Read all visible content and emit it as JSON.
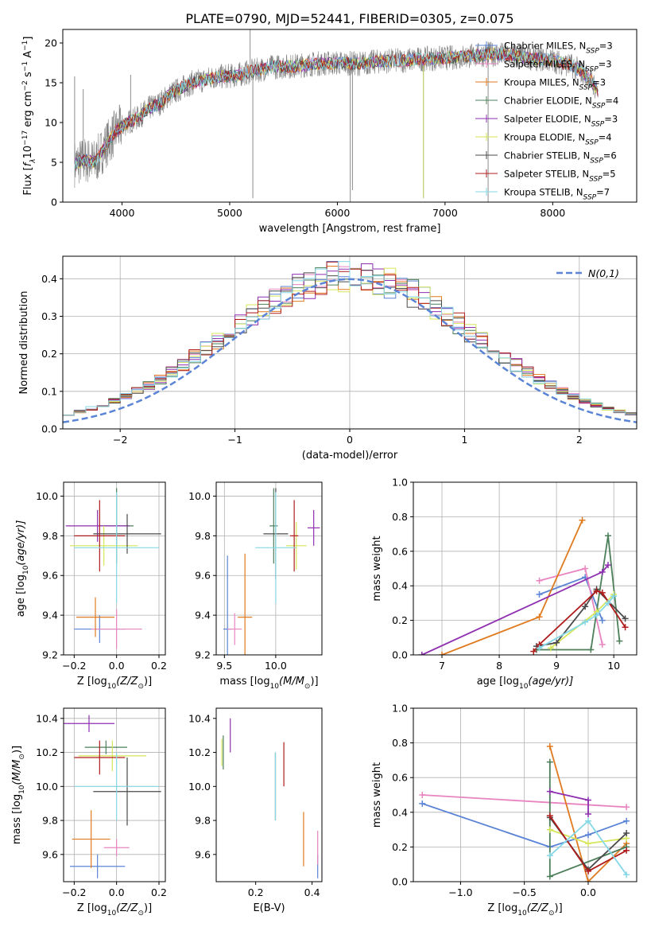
{
  "figure_title": "PLATE=0790, MJD=52441, FIBERID=0305, z=0.075",
  "colors": {
    "Chabrier MILES": "#5b84d6",
    "Salpeter MILES": "#e884c0",
    "Kroupa MILES": "#e07a1f",
    "Chabrier ELODIE": "#4c7f5a",
    "Salpeter ELODIE": "#8e2fb0",
    "Kroupa ELODIE": "#d6e65a",
    "Chabrier STELIB": "#4a4a4a",
    "Salpeter STELIB": "#b01c1c",
    "Kroupa STELIB": "#86d8e6",
    "data": "#808080"
  },
  "chart_data": [
    {
      "id": "spectrum",
      "type": "line",
      "xlabel": "wavelength [Angstrom, rest frame]",
      "ylabel_main": "Flux [",
      "ylabel_parts": [
        "f",
        "λ",
        "10",
        "−17",
        " erg cm",
        "−2",
        " s",
        "−1",
        " A",
        "−1",
        "]"
      ],
      "xlim": [
        3450,
        8780
      ],
      "ylim": [
        0,
        21.7
      ],
      "xticks": [
        4000,
        5000,
        6000,
        7000,
        8000
      ],
      "yticks": [
        0,
        5,
        10,
        15,
        20
      ],
      "grid": false,
      "legend": "right",
      "legend_entries": [
        {
          "name": "Chabrier MILES",
          "nssp": "3"
        },
        {
          "name": "Salpeter MILES",
          "nssp": "3"
        },
        {
          "name": "Kroupa MILES",
          "nssp": "3"
        },
        {
          "name": "Chabrier ELODIE",
          "nssp": "4"
        },
        {
          "name": "Salpeter ELODIE",
          "nssp": "3"
        },
        {
          "name": "Kroupa ELODIE",
          "nssp": "4"
        },
        {
          "name": "Chabrier STELIB",
          "nssp": "6"
        },
        {
          "name": "Salpeter STELIB",
          "nssp": "5"
        },
        {
          "name": "Kroupa STELIB",
          "nssp": "7"
        }
      ],
      "legend_nssp_prefix": "N",
      "legend_nssp_sub": "SSP",
      "continuum": [
        [
          3560,
          4.8
        ],
        [
          3650,
          5.3
        ],
        [
          3750,
          5.0
        ],
        [
          3850,
          7.2
        ],
        [
          3950,
          9.0
        ],
        [
          4050,
          10.0
        ],
        [
          4150,
          10.6
        ],
        [
          4250,
          11.8
        ],
        [
          4350,
          12.4
        ],
        [
          4450,
          13.6
        ],
        [
          4550,
          14.3
        ],
        [
          4650,
          15.0
        ],
        [
          4750,
          15.3
        ],
        [
          4850,
          15.7
        ],
        [
          4950,
          15.8
        ],
        [
          5050,
          15.9
        ],
        [
          5200,
          16.4
        ],
        [
          5400,
          17.0
        ],
        [
          5600,
          17.1
        ],
        [
          5800,
          17.4
        ],
        [
          6000,
          17.5
        ],
        [
          6200,
          17.4
        ],
        [
          6400,
          17.7
        ],
        [
          6600,
          17.8
        ],
        [
          6800,
          18.0
        ],
        [
          7000,
          18.1
        ],
        [
          7200,
          18.3
        ],
        [
          7400,
          18.6
        ],
        [
          7600,
          18.5
        ],
        [
          7800,
          18.1
        ],
        [
          8000,
          17.8
        ],
        [
          8200,
          17.0
        ],
        [
          8350,
          15.5
        ],
        [
          8420,
          13.8
        ]
      ],
      "spikes": [
        [
          3560,
          15.8
        ],
        [
          3640,
          14.2
        ],
        [
          4080,
          16.0
        ],
        [
          5190,
          21.8
        ],
        [
          5215,
          0.5
        ],
        [
          6120,
          0.0
        ],
        [
          6140,
          1.5
        ],
        [
          6800,
          0.5
        ],
        [
          7400,
          0.0
        ],
        [
          7395,
          19.5
        ]
      ]
    },
    {
      "id": "residuals",
      "type": "histogram",
      "xlabel": "(data-model)/error",
      "ylabel": "Normed distribution",
      "xlim": [
        -2.5,
        2.5
      ],
      "ylim": [
        0,
        0.46
      ],
      "xticks": [
        -2,
        -1,
        0,
        1,
        2
      ],
      "yticks": [
        0.0,
        0.1,
        0.2,
        0.3,
        0.4
      ],
      "grid": true,
      "bins": 50,
      "legend": "top-right",
      "legend_label": "N(0,1)"
    },
    {
      "id": "age_vs_Z",
      "type": "scatter",
      "xlabel_main": "Z [log",
      "xlabel_sub": "10",
      "xlabel_rest": "(Z/Z",
      "xlabel_sun": "⊙",
      "ylabel_main": "age  [log",
      "ylabel_sub": "10",
      "ylabel_rest": "(age/yr)]",
      "xlim": [
        -0.25,
        0.23
      ],
      "ylim": [
        9.2,
        10.07
      ],
      "xticks": [
        -0.2,
        0.0,
        0.2
      ],
      "yticks": [
        9.2,
        9.4,
        9.6,
        9.8,
        10.0
      ],
      "grid": true,
      "points": [
        {
          "series": "Chabrier MILES",
          "x": -0.08,
          "y": 9.33,
          "xerr": 0.12,
          "yerr": 0.07
        },
        {
          "series": "Salpeter MILES",
          "x": 0.0,
          "y": 9.33,
          "xerr": 0.12,
          "yerr": 0.1
        },
        {
          "series": "Kroupa MILES",
          "x": -0.1,
          "y": 9.39,
          "xerr": 0.09,
          "yerr": 0.1
        },
        {
          "series": "Chabrier ELODIE",
          "x": 0.0,
          "y": 9.85,
          "xerr": 0.08,
          "yerr": 0.19
        },
        {
          "series": "Salpeter ELODIE",
          "x": -0.09,
          "y": 9.85,
          "xerr": 0.15,
          "yerr": 0.08
        },
        {
          "series": "Kroupa ELODIE",
          "x": -0.06,
          "y": 9.75,
          "xerr": 0.16,
          "yerr": 0.1
        },
        {
          "series": "Chabrier STELIB",
          "x": 0.05,
          "y": 9.81,
          "xerr": 0.16,
          "yerr": 0.1
        },
        {
          "series": "Salpeter STELIB",
          "x": -0.08,
          "y": 9.8,
          "xerr": 0.12,
          "yerr": 0.18
        },
        {
          "series": "Kroupa STELIB",
          "x": 0.0,
          "y": 9.74,
          "xerr": 0.2,
          "yerr": 0.28
        }
      ]
    },
    {
      "id": "age_vs_mass",
      "type": "scatter",
      "xlabel_main": "mass [log",
      "xlabel_sub": "10",
      "xlabel_rest": "(M/M",
      "xlabel_sun": "⊙",
      "xlim": [
        9.42,
        10.45
      ],
      "ylim": [
        9.2,
        10.07
      ],
      "xticks": [
        9.5,
        10.0
      ],
      "yticks": [
        9.2,
        9.4,
        9.6,
        9.8,
        10.0
      ],
      "grid": true,
      "points": [
        {
          "series": "Chabrier MILES",
          "x": 9.53,
          "y": 9.33,
          "xerr": 0.04,
          "yerr": 0.37
        },
        {
          "series": "Salpeter MILES",
          "x": 9.6,
          "y": 9.33,
          "xerr": 0.07,
          "yerr": 0.08
        },
        {
          "series": "Kroupa MILES",
          "x": 9.7,
          "y": 9.39,
          "xerr": 0.07,
          "yerr": 0.32
        },
        {
          "series": "Chabrier ELODIE",
          "x": 9.98,
          "y": 9.85,
          "xerr": 0.04,
          "yerr": 0.19
        },
        {
          "series": "Salpeter ELODIE",
          "x": 10.37,
          "y": 9.84,
          "xerr": 0.06,
          "yerr": 0.09
        },
        {
          "series": "Kroupa ELODIE",
          "x": 10.2,
          "y": 9.75,
          "xerr": 0.1,
          "yerr": 0.12
        },
        {
          "series": "Chabrier STELIB",
          "x": 10.0,
          "y": 9.81,
          "xerr": 0.12,
          "yerr": 0.23
        },
        {
          "series": "Salpeter STELIB",
          "x": 10.18,
          "y": 9.8,
          "xerr": 0.04,
          "yerr": 0.18
        },
        {
          "series": "Kroupa STELIB",
          "x": 10.0,
          "y": 9.74,
          "xerr": 0.2,
          "yerr": 0.28
        }
      ]
    },
    {
      "id": "weight_vs_age",
      "type": "line",
      "xlabel_main": "age  [log",
      "xlabel_sub": "10",
      "xlabel_rest": "(age/yr)]",
      "ylabel": "mass weight",
      "xlim": [
        6.5,
        10.4
      ],
      "ylim": [
        0.0,
        1.0
      ],
      "xticks": [
        7,
        8,
        9,
        10
      ],
      "yticks": [
        0.0,
        0.2,
        0.4,
        0.6,
        0.8,
        1.0
      ],
      "grid": true,
      "series": [
        {
          "name": "Chabrier MILES",
          "points": [
            [
              8.7,
              0.35
            ],
            [
              9.5,
              0.45
            ],
            [
              9.8,
              0.2
            ]
          ]
        },
        {
          "name": "Salpeter MILES",
          "points": [
            [
              8.7,
              0.43
            ],
            [
              9.5,
              0.5
            ],
            [
              9.8,
              0.06
            ]
          ]
        },
        {
          "name": "Kroupa MILES",
          "points": [
            [
              7.0,
              0.0
            ],
            [
              8.7,
              0.22
            ],
            [
              9.45,
              0.78
            ]
          ]
        },
        {
          "name": "Chabrier ELODIE",
          "points": [
            [
              8.65,
              0.03
            ],
            [
              9.6,
              0.03
            ],
            [
              9.9,
              0.69
            ],
            [
              10.1,
              0.08
            ]
          ]
        },
        {
          "name": "Salpeter ELODIE",
          "points": [
            [
              6.65,
              0.0
            ],
            [
              9.8,
              0.48
            ],
            [
              9.9,
              0.52
            ]
          ]
        },
        {
          "name": "Kroupa ELODIE",
          "points": [
            [
              8.9,
              0.04
            ],
            [
              9.7,
              0.25
            ],
            [
              10.0,
              0.35
            ]
          ]
        },
        {
          "name": "Chabrier STELIB",
          "points": [
            [
              8.65,
              0.05
            ],
            [
              9.0,
              0.07
            ],
            [
              9.5,
              0.28
            ],
            [
              9.7,
              0.38
            ],
            [
              10.2,
              0.21
            ]
          ]
        },
        {
          "name": "Salpeter STELIB",
          "points": [
            [
              8.6,
              0.02
            ],
            [
              8.7,
              0.06
            ],
            [
              9.7,
              0.37
            ],
            [
              9.8,
              0.36
            ],
            [
              10.2,
              0.16
            ]
          ]
        },
        {
          "name": "Kroupa STELIB",
          "points": [
            [
              8.7,
              0.04
            ],
            [
              9.5,
              0.19
            ],
            [
              9.7,
              0.23
            ],
            [
              9.9,
              0.3
            ],
            [
              10.0,
              0.34
            ]
          ]
        }
      ]
    },
    {
      "id": "mass_vs_Z",
      "type": "scatter",
      "xlabel_main": "Z [log",
      "xlabel_sub": "10",
      "xlabel_rest": "(Z/Z",
      "xlabel_sun": "⊙",
      "ylabel_main": "mass [log",
      "ylabel_sub": "10",
      "ylabel_rest": "(M/M",
      "ylabel_sun": "⊙",
      "xlim": [
        -0.25,
        0.23
      ],
      "ylim": [
        9.44,
        10.46
      ],
      "xticks": [
        -0.2,
        0.0,
        0.2
      ],
      "yticks": [
        9.6,
        9.8,
        10.0,
        10.2,
        10.4
      ],
      "grid": true,
      "points": [
        {
          "series": "Chabrier MILES",
          "x": -0.09,
          "y": 9.53,
          "xerr": 0.13,
          "yerr": 0.07
        },
        {
          "series": "Salpeter MILES",
          "x": 0.0,
          "y": 9.64,
          "xerr": 0.06,
          "yerr": 0.05
        },
        {
          "series": "Kroupa MILES",
          "x": -0.12,
          "y": 9.69,
          "xerr": 0.09,
          "yerr": 0.17
        },
        {
          "series": "Chabrier ELODIE",
          "x": -0.05,
          "y": 10.23,
          "xerr": 0.1,
          "yerr": 0.04
        },
        {
          "series": "Salpeter ELODIE",
          "x": -0.13,
          "y": 10.37,
          "xerr": 0.12,
          "yerr": 0.05
        },
        {
          "series": "Kroupa ELODIE",
          "x": -0.02,
          "y": 10.18,
          "xerr": 0.16,
          "yerr": 0.09
        },
        {
          "series": "Chabrier STELIB",
          "x": 0.05,
          "y": 9.97,
          "xerr": 0.16,
          "yerr": 0.2
        },
        {
          "series": "Salpeter STELIB",
          "x": -0.08,
          "y": 10.17,
          "xerr": 0.12,
          "yerr": 0.1
        },
        {
          "series": "Kroupa STELIB",
          "x": 0.0,
          "y": 10.0,
          "xerr": 0.2,
          "yerr": 0.2
        }
      ]
    },
    {
      "id": "mass_vs_ebv",
      "type": "scatter",
      "xlabel": "E(B-V)",
      "xlim": [
        0.06,
        0.435
      ],
      "ylim": [
        9.44,
        10.46
      ],
      "xticks": [
        0.2,
        0.4
      ],
      "yticks": [
        9.6,
        9.8,
        10.0,
        10.2,
        10.4
      ],
      "grid": false,
      "points": [
        {
          "series": "Chabrier MILES",
          "x": 0.42,
          "y": 9.53,
          "xerr": 0.0,
          "yerr": 0.07
        },
        {
          "series": "Salpeter MILES",
          "x": 0.42,
          "y": 9.64,
          "xerr": 0.0,
          "yerr": 0.1
        },
        {
          "series": "Kroupa MILES",
          "x": 0.37,
          "y": 9.69,
          "xerr": 0.0,
          "yerr": 0.16
        },
        {
          "series": "Chabrier ELODIE",
          "x": 0.085,
          "y": 10.2,
          "xerr": 0.0,
          "yerr": 0.1
        },
        {
          "series": "Salpeter ELODIE",
          "x": 0.11,
          "y": 10.3,
          "xerr": 0.0,
          "yerr": 0.1
        },
        {
          "series": "Kroupa ELODIE",
          "x": 0.08,
          "y": 10.2,
          "xerr": 0.0,
          "yerr": 0.08
        },
        {
          "series": "Chabrier STELIB",
          "x": 0.27,
          "y": 10.0,
          "xerr": 0.0,
          "yerr": 0.2
        },
        {
          "series": "Salpeter STELIB",
          "x": 0.3,
          "y": 10.13,
          "xerr": 0.0,
          "yerr": 0.13
        },
        {
          "series": "Kroupa STELIB",
          "x": 0.27,
          "y": 10.0,
          "xerr": 0.0,
          "yerr": 0.2
        }
      ]
    },
    {
      "id": "weight_vs_Z",
      "type": "line",
      "xlabel_main": "Z [log",
      "xlabel_sub": "10",
      "xlabel_rest": "(Z/Z",
      "xlabel_sun": "⊙",
      "ylabel": "mass weight",
      "xlim": [
        -1.37,
        0.38
      ],
      "ylim": [
        0.0,
        1.0
      ],
      "xticks": [
        -1.0,
        -0.5,
        0.0
      ],
      "yticks": [
        0.0,
        0.2,
        0.4,
        0.6,
        0.8,
        1.0
      ],
      "grid": true,
      "series": [
        {
          "name": "Chabrier MILES",
          "points": [
            [
              -1.3,
              0.45
            ],
            [
              -0.3,
              0.2
            ],
            [
              0.0,
              0.27
            ],
            [
              0.3,
              0.35
            ]
          ]
        },
        {
          "name": "Salpeter MILES",
          "points": [
            [
              -1.3,
              0.5
            ],
            [
              0.3,
              0.43
            ]
          ]
        },
        {
          "name": "Kroupa MILES",
          "points": [
            [
              -0.3,
              0.78
            ],
            [
              0.0,
              0.0
            ],
            [
              0.3,
              0.22
            ]
          ]
        },
        {
          "name": "Chabrier ELODIE",
          "points": [
            [
              -0.3,
              0.69
            ],
            [
              -0.3,
              0.03
            ],
            [
              0.3,
              0.2
            ]
          ]
        },
        {
          "name": "Salpeter ELODIE",
          "points": [
            [
              -0.3,
              0.52
            ],
            [
              0.0,
              0.47
            ],
            [
              0.0,
              0.39
            ]
          ]
        },
        {
          "name": "Kroupa ELODIE",
          "points": [
            [
              -0.3,
              0.3
            ],
            [
              0.0,
              0.22
            ],
            [
              0.3,
              0.25
            ]
          ]
        },
        {
          "name": "Chabrier STELIB",
          "points": [
            [
              -0.3,
              0.37
            ],
            [
              0.0,
              0.07
            ],
            [
              0.3,
              0.28
            ]
          ]
        },
        {
          "name": "Salpeter STELIB",
          "points": [
            [
              -0.3,
              0.38
            ],
            [
              0.0,
              0.06
            ],
            [
              0.3,
              0.18
            ]
          ]
        },
        {
          "name": "Kroupa STELIB",
          "points": [
            [
              -0.3,
              0.15
            ],
            [
              0.0,
              0.35
            ],
            [
              0.3,
              0.04
            ]
          ]
        }
      ]
    }
  ]
}
